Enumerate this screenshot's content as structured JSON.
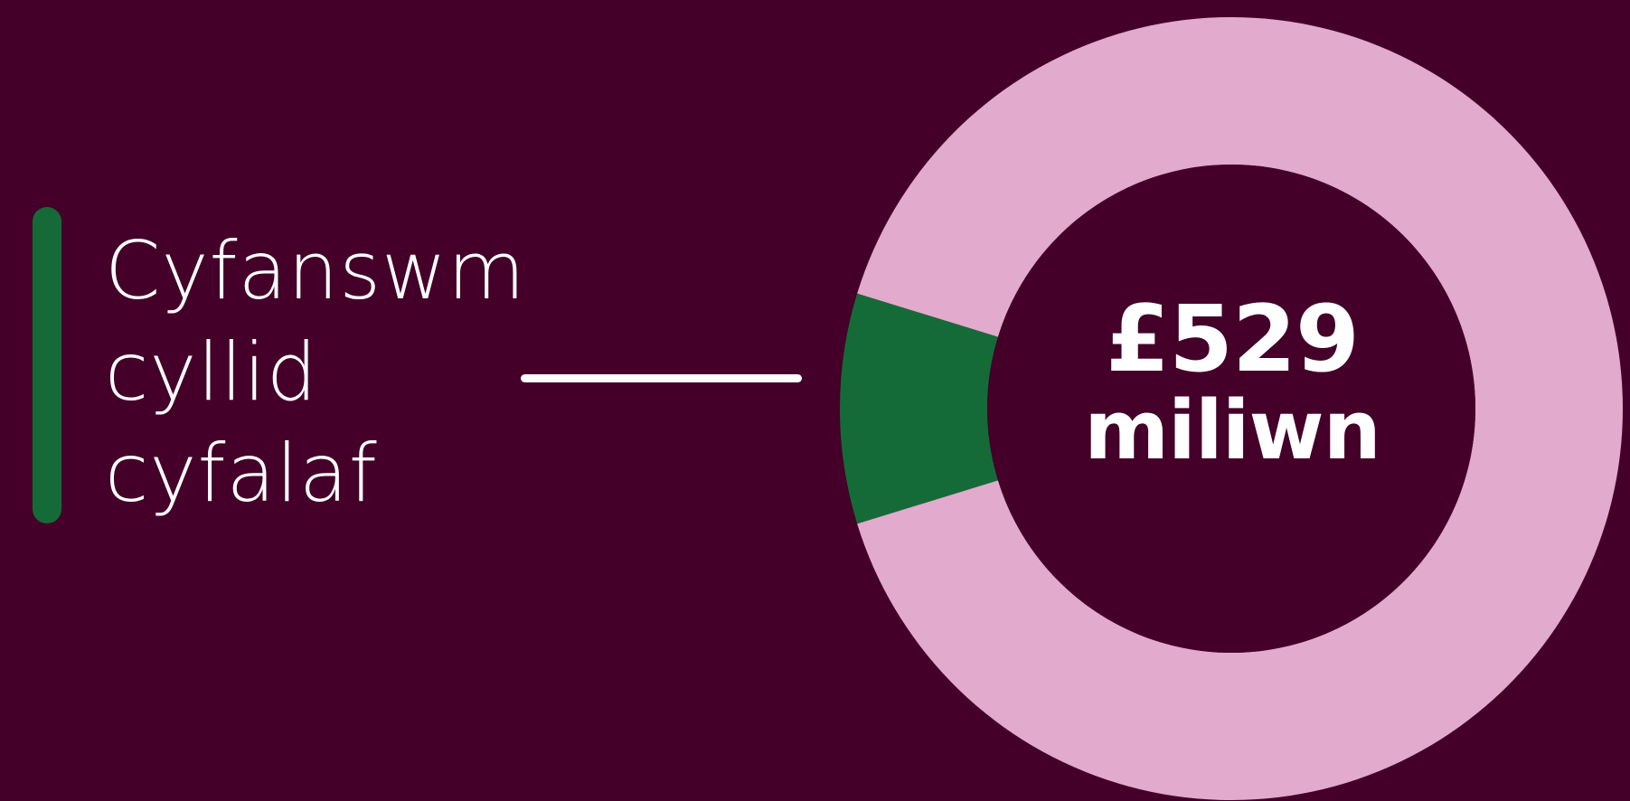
{
  "colors": {
    "background": "#440029",
    "accent": "#156b38",
    "ring": "#e2aacc",
    "text": "#ffffff"
  },
  "label": {
    "lines": [
      "Cyfanswm",
      "cyllid",
      "cyfalaf"
    ]
  },
  "center": {
    "amount": "£529",
    "unit": "miliwn"
  },
  "chart_data": {
    "type": "pie",
    "variant": "donut",
    "title": "",
    "segments": [
      {
        "color": "#156b38",
        "fraction": 0.095,
        "highlighted": true
      },
      {
        "color": "#e2aacc",
        "fraction": 0.905,
        "highlighted": false
      }
    ],
    "center_label": "£529 miliwn"
  }
}
